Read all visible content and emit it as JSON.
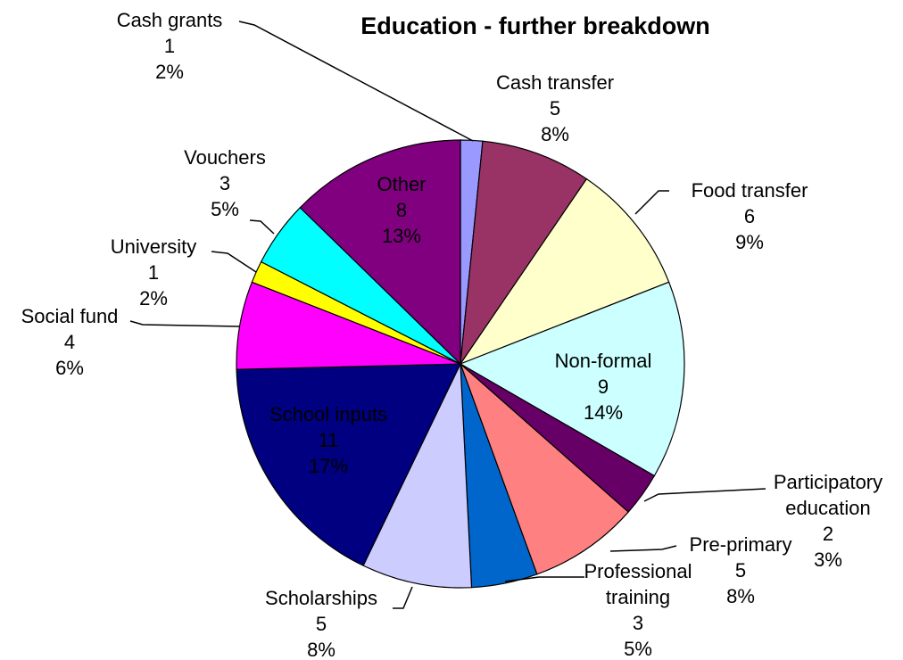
{
  "chart_data": {
    "type": "pie",
    "title": "Education - further breakdown",
    "categories": [
      "Cash grants",
      "Cash transfer",
      "Food transfer",
      "Non-formal",
      "Participatory education",
      "Pre-primary",
      "Professional training",
      "Scholarships",
      "School inputs",
      "Social fund",
      "University",
      "Vouchers",
      "Other"
    ],
    "values": [
      1,
      5,
      6,
      9,
      2,
      5,
      3,
      5,
      11,
      4,
      1,
      3,
      8
    ],
    "percent_labels": [
      "2%",
      "8%",
      "9%",
      "14%",
      "3%",
      "8%",
      "5%",
      "8%",
      "17%",
      "6%",
      "2%",
      "5%",
      "13%"
    ],
    "colors": [
      "#9999ff",
      "#993366",
      "#ffffcc",
      "#ccffff",
      "#660066",
      "#ff8080",
      "#0066cc",
      "#ccccff",
      "#000080",
      "#ff00ff",
      "#ffff00",
      "#00ffff",
      "#800080"
    ]
  }
}
